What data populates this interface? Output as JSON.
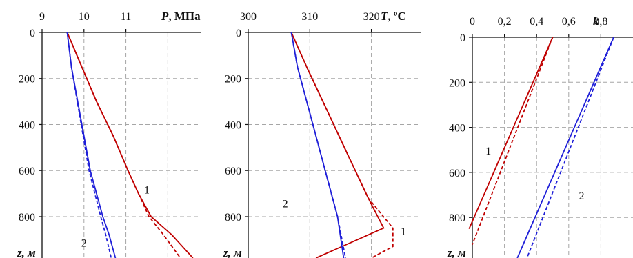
{
  "chart_data": [
    {
      "type": "line",
      "title": "",
      "xlabel_var": "P",
      "xlabel_unit": ", МПа",
      "ylabel": "z, м",
      "x_ticks": [
        "9",
        "10",
        "11"
      ],
      "y_ticks": [
        "0",
        "200",
        "400",
        "600",
        "800"
      ],
      "xlim": [
        9,
        12.8
      ],
      "ylim": [
        0,
        980
      ],
      "grid": true,
      "series": [
        {
          "label": "1",
          "style": "solid",
          "color": "#c00000",
          "x": [
            9.6,
            9.95,
            10.3,
            10.7,
            11.05,
            11.3,
            11.6,
            12.1,
            12.6
          ],
          "y": [
            0,
            150,
            300,
            450,
            600,
            700,
            800,
            880,
            980
          ]
        },
        {
          "label": "1",
          "style": "dashed",
          "color": "#c00000",
          "x": [
            9.6,
            9.95,
            10.3,
            10.7,
            11.05,
            11.3,
            11.55,
            11.9,
            12.3
          ],
          "y": [
            0,
            150,
            300,
            450,
            600,
            700,
            800,
            880,
            980
          ]
        },
        {
          "label": "2",
          "style": "solid",
          "color": "#1f1fd8",
          "x": [
            9.6,
            9.7,
            9.85,
            10.0,
            10.15,
            10.3,
            10.45,
            10.6,
            10.75
          ],
          "y": [
            0,
            150,
            300,
            450,
            600,
            700,
            800,
            880,
            980
          ]
        },
        {
          "label": "2",
          "style": "dashed",
          "color": "#1f1fd8",
          "x": [
            9.6,
            9.7,
            9.84,
            9.98,
            10.12,
            10.26,
            10.4,
            10.52,
            10.65
          ],
          "y": [
            0,
            150,
            300,
            450,
            600,
            700,
            800,
            880,
            980
          ]
        }
      ],
      "annotations": [
        {
          "text": "1",
          "x": 11.5,
          "y": 700
        },
        {
          "text": "2",
          "x": 10.0,
          "y": 930
        }
      ]
    },
    {
      "type": "line",
      "title": "",
      "xlabel_var": "T",
      "xlabel_unit": ", ºC",
      "ylabel": "z, м",
      "x_ticks": [
        "300",
        "310",
        "320"
      ],
      "y_ticks": [
        "0",
        "200",
        "400",
        "600",
        "800"
      ],
      "xlim": [
        300,
        328
      ],
      "ylim": [
        0,
        980
      ],
      "grid": true,
      "series": [
        {
          "label": "1",
          "style": "solid",
          "color": "#c00000",
          "x": [
            307,
            309.5,
            313,
            316.5,
            319.5,
            322,
            311
          ],
          "y": [
            0,
            150,
            350,
            550,
            720,
            850,
            980
          ]
        },
        {
          "label": "1",
          "style": "dashed",
          "color": "#c00000",
          "x": [
            307,
            309.5,
            313,
            316.5,
            319.5,
            323.5,
            323.5,
            320
          ],
          "y": [
            0,
            150,
            350,
            550,
            720,
            850,
            930,
            980
          ]
        },
        {
          "label": "2",
          "style": "solid",
          "color": "#1f1fd8",
          "x": [
            307,
            308,
            310,
            312.5,
            314.5,
            315.5
          ],
          "y": [
            0,
            150,
            350,
            600,
            800,
            980
          ]
        },
        {
          "label": "2",
          "style": "dashed",
          "color": "#1f1fd8",
          "x": [
            307,
            308,
            310,
            312.5,
            314.5,
            315.8
          ],
          "y": [
            0,
            150,
            350,
            600,
            800,
            980
          ]
        }
      ],
      "annotations": [
        {
          "text": "1",
          "x": 325.2,
          "y": 880
        },
        {
          "text": "2",
          "x": 306,
          "y": 760
        }
      ]
    },
    {
      "type": "line",
      "title": "",
      "xlabel_var": "k",
      "xlabel_unit": "",
      "ylabel": "z, м",
      "x_ticks": [
        "0",
        "0,2",
        "0,4",
        "0,6",
        "0,8"
      ],
      "y_ticks": [
        "0",
        "200",
        "400",
        "600",
        "800"
      ],
      "xlim": [
        0,
        1.0
      ],
      "ylim": [
        0,
        980
      ],
      "grid": true,
      "series": [
        {
          "label": "1",
          "style": "solid",
          "color": "#c00000",
          "x": [
            0.5,
            -0.02
          ],
          "y": [
            0,
            850
          ]
        },
        {
          "label": "1",
          "style": "dashed",
          "color": "#c00000",
          "x": [
            0.5,
            0.0
          ],
          "y": [
            0,
            920
          ]
        },
        {
          "label": "2",
          "style": "solid",
          "color": "#1f1fd8",
          "x": [
            0.88,
            0.28
          ],
          "y": [
            0,
            980
          ]
        },
        {
          "label": "2",
          "style": "dashed",
          "color": "#1f1fd8",
          "x": [
            0.88,
            0.34
          ],
          "y": [
            0,
            980
          ]
        }
      ],
      "annotations": [
        {
          "text": "1",
          "x": 0.1,
          "y": 520
        },
        {
          "text": "2",
          "x": 0.68,
          "y": 720
        }
      ]
    }
  ]
}
